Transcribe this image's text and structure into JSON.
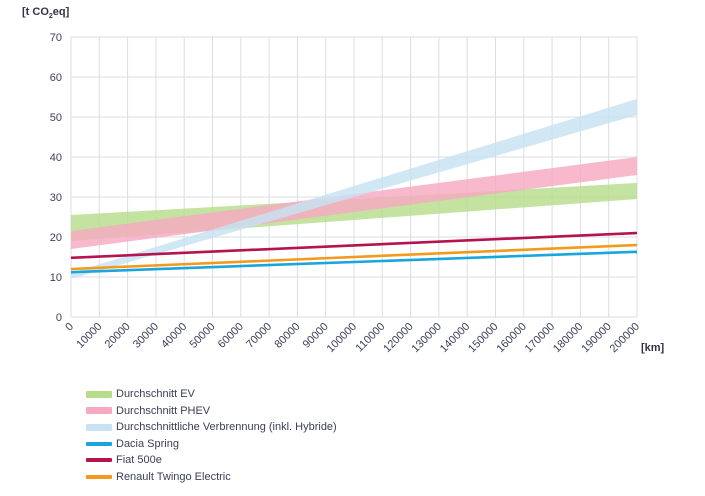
{
  "chart_data": {
    "type": "line",
    "ylabel": {
      "prefix": "[t CO",
      "sub": "2",
      "suffix": "eq]"
    },
    "xlabel": "[km]",
    "ylim": [
      0,
      70
    ],
    "yticks": [
      0,
      10,
      20,
      30,
      40,
      50,
      60,
      70
    ],
    "xlim": [
      0,
      200000
    ],
    "xticks": [
      0,
      10000,
      20000,
      30000,
      40000,
      50000,
      60000,
      70000,
      80000,
      90000,
      100000,
      110000,
      120000,
      130000,
      140000,
      150000,
      160000,
      170000,
      180000,
      190000,
      200000
    ],
    "grid": true,
    "legend_position": "bottom-left",
    "series": [
      {
        "name": "Durchschnitt EV",
        "kind": "band",
        "color": "#b7dd8c",
        "x": [
          0,
          200000
        ],
        "low": [
          19,
          29.5
        ],
        "high": [
          25.5,
          33.5
        ]
      },
      {
        "name": "Durchschnitt PHEV",
        "kind": "band",
        "color": "#f7a9c2",
        "x": [
          0,
          200000
        ],
        "low": [
          17,
          35.5
        ],
        "high": [
          21.5,
          40
        ]
      },
      {
        "name": "Durchschnittliche Verbrennung  (inkl. Hybride)",
        "kind": "band",
        "color": "#c7e2f2",
        "x": [
          0,
          200000
        ],
        "low": [
          9.5,
          50.5
        ],
        "high": [
          11,
          54.5
        ]
      },
      {
        "name": "Dacia Spring",
        "kind": "line",
        "color": "#1aa6dc",
        "x": [
          0,
          200000
        ],
        "y": [
          11.2,
          16.3
        ]
      },
      {
        "name": "Fiat 500e",
        "kind": "line",
        "color": "#b5134f",
        "x": [
          0,
          200000
        ],
        "y": [
          14.8,
          21
        ]
      },
      {
        "name": "Renault Twingo Electric",
        "kind": "line",
        "color": "#f39a1e",
        "x": [
          0,
          200000
        ],
        "y": [
          12,
          18
        ]
      }
    ]
  }
}
